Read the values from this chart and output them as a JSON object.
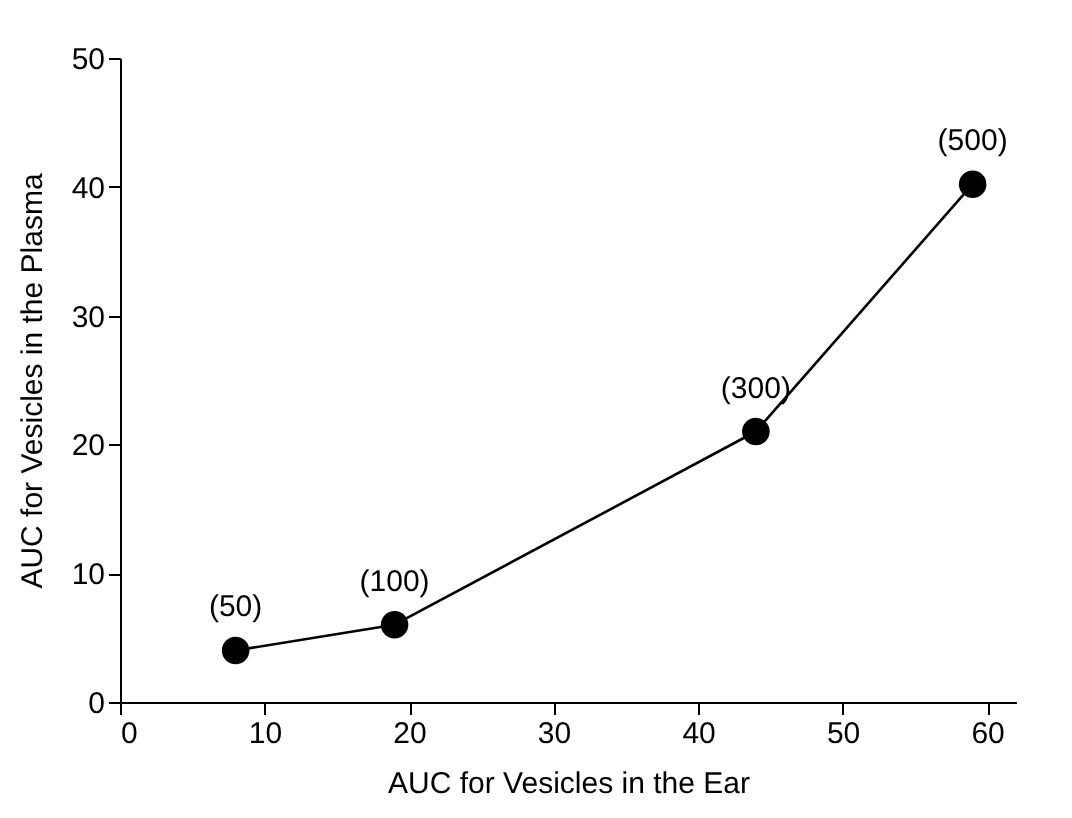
{
  "chart_data": {
    "type": "line",
    "xlabel": "AUC for Vesicles in the Ear",
    "ylabel": "AUC for Vesicles in the Plasma",
    "x": [
      8,
      19,
      44,
      59
    ],
    "series": [
      {
        "color": "#000000",
        "values": [
          4,
          6,
          21,
          40.2
        ]
      }
    ],
    "annotations": [
      {
        "text": "(50)",
        "x": 8,
        "y": 4
      },
      {
        "text": "(100)",
        "x": 19,
        "y": 6
      },
      {
        "text": "(300)",
        "x": 44,
        "y": 21
      },
      {
        "text": "(500)",
        "x": 59,
        "y": 40.2
      }
    ],
    "xlim": [
      0,
      62
    ],
    "xticks": [
      0,
      10,
      20,
      30,
      40,
      50,
      60
    ],
    "ylim": [
      0,
      50
    ],
    "yticks": [
      0,
      10,
      20,
      30,
      40,
      50
    ],
    "marker": "circle",
    "line_style": "solid",
    "grid": false
  }
}
